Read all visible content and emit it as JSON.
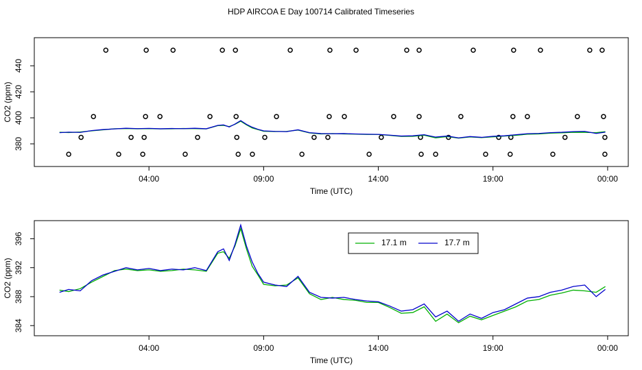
{
  "chart_data": [
    {
      "type": "line",
      "title": "HDP AIRCOA E  Day 100714  Calibrated Timeseries",
      "x_label": "Time (UTC)",
      "y_label": "CO2 (ppm)",
      "xlim": [
        -1,
        24.9
      ],
      "ylim": [
        362.6,
        461.6
      ],
      "xticks": [
        {
          "value": 4,
          "label": "04:00"
        },
        {
          "value": 9,
          "label": "09:00"
        },
        {
          "value": 14,
          "label": "14:00"
        },
        {
          "value": 19,
          "label": "19:00"
        },
        {
          "value": 24,
          "label": "00:00"
        }
      ],
      "yticks": [
        380,
        400,
        420,
        440
      ],
      "x": [
        0.1,
        0.5,
        1,
        1.5,
        2,
        2.5,
        3,
        3.5,
        4,
        4.5,
        5,
        5.5,
        6,
        6.5,
        7,
        7.25,
        7.5,
        7.75,
        8,
        8.25,
        8.5,
        8.75,
        9,
        9.5,
        10,
        10.5,
        11,
        11.5,
        12,
        12.5,
        13,
        13.5,
        14,
        14.5,
        15,
        15.5,
        16,
        16.5,
        17,
        17.5,
        18,
        18.5,
        19,
        19.5,
        20,
        20.5,
        21,
        21.5,
        22,
        22.5,
        23,
        23.5,
        23.9
      ],
      "series": [
        {
          "color": "#00b000",
          "values": [
            388.9,
            388.7,
            389.1,
            390.0,
            390.8,
            391.6,
            391.8,
            391.6,
            391.7,
            391.5,
            391.6,
            391.8,
            391.7,
            391.5,
            394.0,
            394.2,
            393.3,
            395.0,
            397.4,
            394.6,
            392.2,
            391.0,
            389.7,
            389.5,
            389.6,
            390.6,
            388.4,
            387.6,
            387.9,
            387.6,
            387.5,
            387.2,
            387.2,
            386.5,
            385.7,
            385.8,
            386.6,
            384.6,
            385.6,
            384.4,
            385.3,
            384.8,
            385.4,
            386.0,
            386.6,
            387.4,
            387.6,
            388.2,
            388.5,
            388.9,
            388.8,
            388.6,
            389.4
          ]
        },
        {
          "color": "#0000cc",
          "values": [
            388.6,
            389.0,
            388.8,
            390.2,
            391.0,
            391.5,
            392.0,
            391.7,
            391.9,
            391.6,
            391.8,
            391.7,
            392.0,
            391.6,
            394.2,
            394.6,
            393.0,
            395.2,
            397.9,
            395.0,
            392.8,
            391.2,
            390.0,
            389.6,
            389.4,
            390.8,
            388.6,
            387.9,
            387.8,
            387.9,
            387.6,
            387.4,
            387.3,
            386.7,
            386.0,
            386.2,
            387.0,
            385.2,
            386.0,
            384.6,
            385.6,
            385.0,
            385.8,
            386.2,
            387.0,
            387.8,
            388.0,
            388.6,
            388.9,
            389.4,
            389.6,
            388.0,
            389.0
          ]
        }
      ],
      "points": {
        "color": "#000000",
        "x": [
          2.12,
          3.88,
          5.05,
          7.2,
          7.77,
          10.16,
          11.89,
          13.03,
          15.24,
          15.78,
          18.14,
          19.9,
          21.07,
          23.22,
          23.76,
          1.58,
          3.85,
          4.48,
          6.66,
          7.8,
          9.56,
          11.86,
          12.52,
          14.67,
          15.78,
          17.6,
          19.87,
          20.5,
          22.68,
          23.82,
          1.04,
          3.22,
          3.79,
          6.12,
          7.83,
          9.05,
          11.2,
          11.8,
          14.13,
          15.84,
          17.06,
          19.25,
          19.78,
          22.14,
          23.88,
          0.5,
          2.68,
          3.73,
          5.58,
          7.89,
          8.51,
          10.67,
          13.6,
          15.87,
          16.5,
          18.68,
          19.75,
          21.61,
          23.88
        ],
        "y": [
          452,
          452,
          452,
          452,
          452,
          452,
          452,
          452,
          452,
          452,
          452,
          452,
          452,
          452,
          452,
          401,
          401,
          401,
          401,
          401,
          401,
          401,
          401,
          401,
          401,
          401,
          401,
          401,
          401,
          401,
          385,
          385,
          385,
          385,
          385,
          385,
          385,
          385,
          385,
          385,
          385,
          385,
          385,
          385,
          385,
          372,
          372,
          372,
          372,
          372,
          372,
          372,
          372,
          372,
          372,
          372,
          372,
          372,
          372
        ]
      }
    },
    {
      "type": "line",
      "x_label": "Time (UTC)",
      "y_label": "CO2 (ppm)",
      "xlim": [
        -1,
        24.9
      ],
      "ylim": [
        382.6,
        398.5
      ],
      "xticks": [
        {
          "value": 4,
          "label": "04:00"
        },
        {
          "value": 9,
          "label": "09:00"
        },
        {
          "value": 14,
          "label": "14:00"
        },
        {
          "value": 19,
          "label": "19:00"
        },
        {
          "value": 24,
          "label": "00:00"
        }
      ],
      "yticks": [
        384,
        388,
        392,
        396
      ],
      "legend": "top",
      "x": [
        0.1,
        0.5,
        1,
        1.5,
        2,
        2.5,
        3,
        3.5,
        4,
        4.5,
        5,
        5.5,
        6,
        6.5,
        7,
        7.25,
        7.5,
        7.75,
        8,
        8.25,
        8.5,
        8.75,
        9,
        9.5,
        10,
        10.5,
        11,
        11.5,
        12,
        12.5,
        13,
        13.5,
        14,
        14.5,
        15,
        15.5,
        16,
        16.5,
        17,
        17.5,
        18,
        18.5,
        19,
        19.5,
        20,
        20.5,
        21,
        21.5,
        22,
        22.5,
        23,
        23.5,
        23.9
      ],
      "series": [
        {
          "name": "17.1 m",
          "color": "#00b000",
          "values": [
            388.9,
            388.7,
            389.1,
            390.0,
            390.8,
            391.6,
            391.8,
            391.6,
            391.7,
            391.5,
            391.6,
            391.8,
            391.7,
            391.5,
            394.0,
            394.2,
            393.3,
            395.0,
            397.4,
            394.6,
            392.2,
            391.0,
            389.7,
            389.5,
            389.6,
            390.6,
            388.4,
            387.6,
            387.9,
            387.6,
            387.5,
            387.2,
            387.2,
            386.5,
            385.7,
            385.8,
            386.6,
            384.6,
            385.6,
            384.4,
            385.3,
            384.8,
            385.4,
            386.0,
            386.6,
            387.4,
            387.6,
            388.2,
            388.5,
            388.9,
            388.8,
            388.6,
            389.4
          ]
        },
        {
          "name": "17.7 m",
          "color": "#0000cc",
          "values": [
            388.6,
            389.0,
            388.8,
            390.2,
            391.0,
            391.5,
            392.0,
            391.7,
            391.9,
            391.6,
            391.8,
            391.7,
            392.0,
            391.6,
            394.2,
            394.6,
            393.0,
            395.2,
            397.9,
            395.0,
            392.8,
            391.2,
            390.0,
            389.6,
            389.4,
            390.8,
            388.6,
            387.9,
            387.8,
            387.9,
            387.6,
            387.4,
            387.3,
            386.7,
            386.0,
            386.2,
            387.0,
            385.2,
            386.0,
            384.6,
            385.6,
            385.0,
            385.8,
            386.2,
            387.0,
            387.8,
            388.0,
            388.6,
            388.9,
            389.4,
            389.6,
            388.0,
            389.0
          ]
        }
      ]
    }
  ]
}
